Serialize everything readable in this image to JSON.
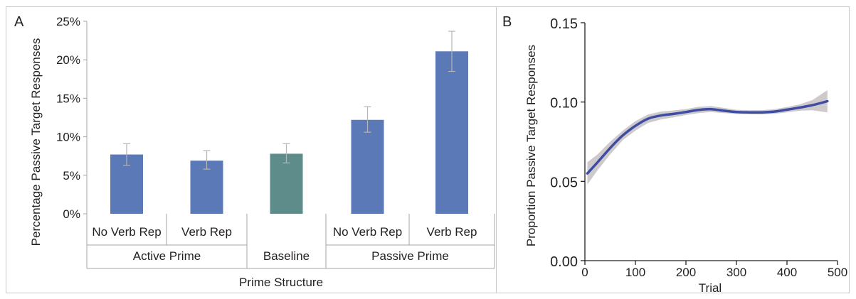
{
  "chart_data": [
    {
      "panel_label": "A",
      "type": "bar",
      "ylabel": "Percentage Passive Target Responses",
      "xlabel": "Prime Structure",
      "ylim": [
        0,
        25
      ],
      "yticks": [
        "0%",
        "5%",
        "10%",
        "15%",
        "20%",
        "25%"
      ],
      "categories": [
        "No Verb Rep",
        "Verb Rep",
        "",
        "No Verb Rep",
        "Verb Rep"
      ],
      "groups": [
        "Active Prime",
        "Baseline",
        "Passive Prime"
      ],
      "values": [
        7.7,
        6.9,
        7.8,
        12.2,
        21.1
      ],
      "error_low": [
        6.3,
        5.8,
        6.6,
        10.6,
        18.5
      ],
      "error_high": [
        9.1,
        8.2,
        9.1,
        13.9,
        23.7
      ],
      "colors": [
        "#5b78b7",
        "#5b78b7",
        "#5e8c8a",
        "#5b78b7",
        "#5b78b7"
      ]
    },
    {
      "panel_label": "B",
      "type": "line",
      "xlabel": "Trial",
      "ylabel": "Proportion Passive Target Responses",
      "xlim": [
        0,
        500
      ],
      "ylim": [
        0,
        0.15
      ],
      "xticks": [
        "0",
        "100",
        "200",
        "300",
        "400",
        "500"
      ],
      "yticks": [
        "0.00",
        "0.05",
        "0.10",
        "0.15"
      ],
      "x": [
        5,
        25,
        50,
        75,
        100,
        125,
        150,
        175,
        200,
        225,
        250,
        275,
        300,
        325,
        350,
        375,
        400,
        425,
        450,
        480
      ],
      "y": [
        0.055,
        0.062,
        0.071,
        0.079,
        0.085,
        0.0895,
        0.0915,
        0.0925,
        0.0937,
        0.095,
        0.0955,
        0.0945,
        0.0937,
        0.0935,
        0.0935,
        0.094,
        0.0952,
        0.0965,
        0.098,
        0.1005
      ],
      "ci_low": [
        0.048,
        0.057,
        0.067,
        0.076,
        0.082,
        0.0868,
        0.089,
        0.0903,
        0.0918,
        0.093,
        0.0937,
        0.093,
        0.0925,
        0.0923,
        0.0922,
        0.0926,
        0.0935,
        0.0945,
        0.0948,
        0.0935
      ],
      "ci_high": [
        0.062,
        0.067,
        0.075,
        0.082,
        0.088,
        0.0922,
        0.094,
        0.0947,
        0.0956,
        0.097,
        0.0975,
        0.0963,
        0.0951,
        0.0949,
        0.0949,
        0.0955,
        0.0969,
        0.0985,
        0.1012,
        0.1075
      ],
      "line_color": "#3e4ca3",
      "band_color": "#c9c4c6"
    }
  ]
}
